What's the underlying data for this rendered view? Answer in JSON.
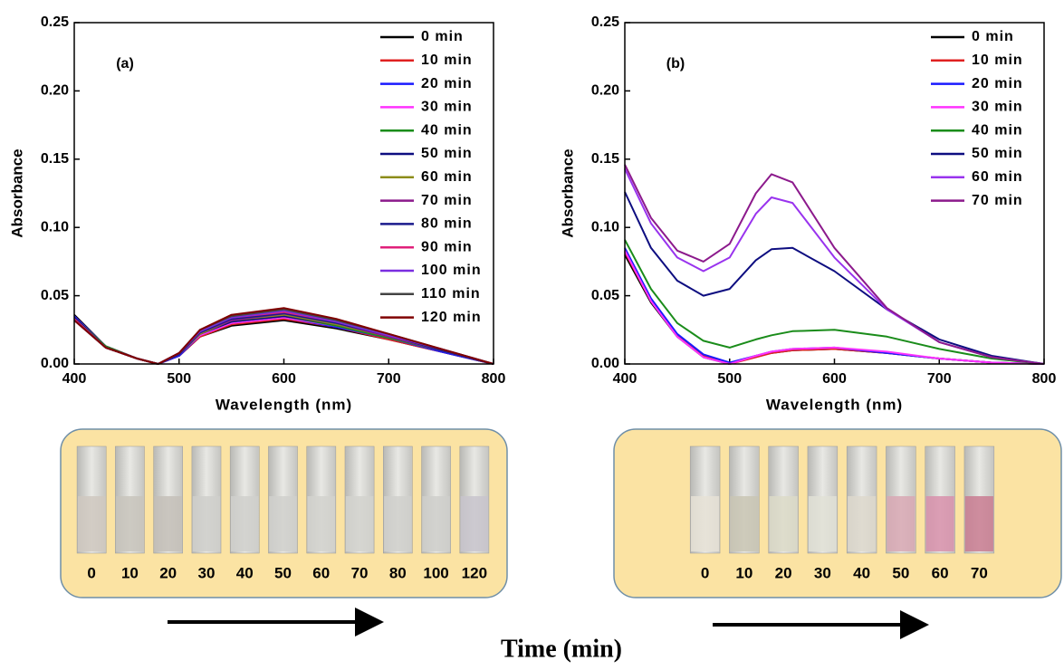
{
  "chart_data": [
    {
      "type": "line",
      "annotation": "(a)",
      "xlabel": "Wavelength (nm)",
      "ylabel": "Absorbance",
      "xlim": [
        400,
        800
      ],
      "xticks": [
        400,
        500,
        600,
        700,
        800
      ],
      "ylim": [
        0,
        0.25
      ],
      "yticks": [
        {
          "value": 0,
          "label": "0.00"
        },
        {
          "value": 0.05,
          "label": "0.05"
        },
        {
          "value": 0.1,
          "label": "0.10"
        },
        {
          "value": 0.15,
          "label": "0.15"
        },
        {
          "value": 0.2,
          "label": "0.20"
        },
        {
          "value": 0.25,
          "label": "0.25"
        }
      ],
      "legend": "upper right",
      "x": [
        400,
        430,
        460,
        480,
        500,
        520,
        550,
        600,
        650,
        700,
        750,
        800
      ],
      "series": [
        {
          "name": "0 min",
          "color": "#000000",
          "values": [
            0.036,
            0.013,
            0.004,
            0.0,
            0.006,
            0.02,
            0.028,
            0.032,
            0.026,
            0.018,
            0.009,
            0.0
          ]
        },
        {
          "name": "10 min",
          "color": "#e02020",
          "values": [
            0.035,
            0.013,
            0.004,
            0.0,
            0.006,
            0.02,
            0.029,
            0.033,
            0.027,
            0.018,
            0.009,
            0.0
          ]
        },
        {
          "name": "20 min",
          "color": "#1a1aff",
          "values": [
            0.035,
            0.013,
            0.004,
            0.0,
            0.006,
            0.021,
            0.03,
            0.034,
            0.027,
            0.019,
            0.009,
            0.0
          ]
        },
        {
          "name": "30 min",
          "color": "#ff33ff",
          "values": [
            0.034,
            0.013,
            0.004,
            0.0,
            0.007,
            0.021,
            0.03,
            0.034,
            0.028,
            0.019,
            0.01,
            0.0
          ]
        },
        {
          "name": "40 min",
          "color": "#1a8c1a",
          "values": [
            0.034,
            0.013,
            0.004,
            0.0,
            0.007,
            0.022,
            0.031,
            0.035,
            0.028,
            0.019,
            0.01,
            0.0
          ]
        },
        {
          "name": "50 min",
          "color": "#0d0d80",
          "values": [
            0.034,
            0.012,
            0.004,
            0.0,
            0.007,
            0.022,
            0.031,
            0.035,
            0.029,
            0.02,
            0.01,
            0.0
          ]
        },
        {
          "name": "60 min",
          "color": "#8c8c1a",
          "values": [
            0.033,
            0.012,
            0.004,
            0.0,
            0.007,
            0.022,
            0.032,
            0.036,
            0.029,
            0.02,
            0.01,
            0.0
          ]
        },
        {
          "name": "70 min",
          "color": "#8c1a8c",
          "values": [
            0.033,
            0.012,
            0.004,
            0.0,
            0.007,
            0.023,
            0.032,
            0.037,
            0.03,
            0.02,
            0.01,
            0.0
          ]
        },
        {
          "name": "80 min",
          "color": "#1a1a8c",
          "values": [
            0.033,
            0.012,
            0.004,
            0.0,
            0.007,
            0.023,
            0.033,
            0.037,
            0.03,
            0.021,
            0.01,
            0.0
          ]
        },
        {
          "name": "90 min",
          "color": "#e0207a",
          "values": [
            0.033,
            0.012,
            0.004,
            0.0,
            0.008,
            0.024,
            0.034,
            0.038,
            0.031,
            0.021,
            0.011,
            0.0
          ]
        },
        {
          "name": "100 min",
          "color": "#7a2ee0",
          "values": [
            0.032,
            0.012,
            0.004,
            0.0,
            0.008,
            0.024,
            0.034,
            0.039,
            0.031,
            0.021,
            0.011,
            0.0
          ]
        },
        {
          "name": "110 min",
          "color": "#444444",
          "values": [
            0.032,
            0.012,
            0.004,
            0.0,
            0.008,
            0.025,
            0.035,
            0.04,
            0.032,
            0.022,
            0.011,
            0.0
          ]
        },
        {
          "name": "120 min",
          "color": "#800000",
          "values": [
            0.032,
            0.012,
            0.004,
            0.0,
            0.008,
            0.025,
            0.036,
            0.041,
            0.033,
            0.022,
            0.011,
            0.0
          ]
        }
      ]
    },
    {
      "type": "line",
      "annotation": "(b)",
      "xlabel": "Wavelength (nm)",
      "ylabel": "Absorbance",
      "xlim": [
        400,
        800
      ],
      "xticks": [
        400,
        500,
        600,
        700,
        800
      ],
      "ylim": [
        0,
        0.25
      ],
      "yticks": [
        {
          "value": 0,
          "label": "0.00"
        },
        {
          "value": 0.05,
          "label": "0.05"
        },
        {
          "value": 0.1,
          "label": "0.10"
        },
        {
          "value": 0.15,
          "label": "0.15"
        },
        {
          "value": 0.2,
          "label": "0.20"
        },
        {
          "value": 0.25,
          "label": "0.25"
        }
      ],
      "legend": "upper right",
      "x": [
        400,
        425,
        450,
        475,
        500,
        525,
        540,
        560,
        600,
        650,
        700,
        750,
        800
      ],
      "series": [
        {
          "name": "0 min",
          "color": "#000000",
          "values": [
            0.08,
            0.045,
            0.02,
            0.005,
            0.0,
            0.006,
            0.008,
            0.01,
            0.011,
            0.008,
            0.004,
            0.001,
            0.0
          ]
        },
        {
          "name": "10 min",
          "color": "#e02020",
          "values": [
            0.082,
            0.046,
            0.021,
            0.006,
            0.0,
            0.005,
            0.008,
            0.01,
            0.011,
            0.008,
            0.004,
            0.001,
            0.0
          ]
        },
        {
          "name": "20 min",
          "color": "#1a1aff",
          "values": [
            0.085,
            0.048,
            0.022,
            0.007,
            0.001,
            0.006,
            0.009,
            0.011,
            0.012,
            0.008,
            0.004,
            0.001,
            0.0
          ]
        },
        {
          "name": "30 min",
          "color": "#ff33ff",
          "values": [
            0.083,
            0.046,
            0.02,
            0.005,
            0.0,
            0.006,
            0.009,
            0.011,
            0.012,
            0.009,
            0.004,
            0.001,
            0.0
          ]
        },
        {
          "name": "40 min",
          "color": "#1a8c1a",
          "values": [
            0.091,
            0.055,
            0.03,
            0.017,
            0.012,
            0.018,
            0.021,
            0.024,
            0.025,
            0.02,
            0.011,
            0.004,
            0.0
          ]
        },
        {
          "name": "50 min",
          "color": "#0d0d80",
          "values": [
            0.126,
            0.085,
            0.061,
            0.05,
            0.055,
            0.076,
            0.084,
            0.085,
            0.068,
            0.04,
            0.018,
            0.006,
            0.0
          ]
        },
        {
          "name": "60 min",
          "color": "#9933ee",
          "values": [
            0.143,
            0.103,
            0.078,
            0.068,
            0.078,
            0.11,
            0.122,
            0.118,
            0.078,
            0.04,
            0.016,
            0.005,
            0.0
          ]
        },
        {
          "name": "70 min",
          "color": "#8c1a8c",
          "values": [
            0.146,
            0.107,
            0.083,
            0.075,
            0.088,
            0.125,
            0.139,
            0.133,
            0.085,
            0.041,
            0.016,
            0.005,
            0.0
          ]
        }
      ]
    }
  ],
  "panels": [
    {
      "labels": [
        "0",
        "10",
        "20",
        "30",
        "40",
        "50",
        "60",
        "70",
        "80",
        "100",
        "120"
      ]
    },
    {
      "labels": [
        "0",
        "10",
        "20",
        "30",
        "40",
        "50",
        "60",
        "70"
      ]
    }
  ],
  "footer": "Time (min)"
}
